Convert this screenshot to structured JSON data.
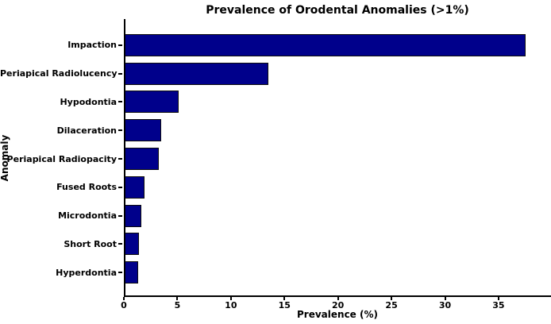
{
  "chart_data": {
    "type": "bar",
    "orientation": "horizontal",
    "title": "Prevalence of Orodental Anomalies (>1%)",
    "xlabel": "Prevalence (%)",
    "ylabel": "Anomaly",
    "categories": [
      "Impaction",
      "Periapical Radiolucency",
      "Hypodontia",
      "Dilaceration",
      "Periapical Radiopacity",
      "Fused Roots",
      "Microdontia",
      "Short Root",
      "Hyperdontia"
    ],
    "values": [
      37.5,
      13.5,
      5.1,
      3.5,
      3.3,
      1.9,
      1.6,
      1.4,
      1.3
    ],
    "xlim": [
      0,
      39.9
    ],
    "xticks": [
      0,
      5,
      10,
      15,
      20,
      25,
      30,
      35
    ],
    "bar_color": "#00008B",
    "bar_edge_color": "#0d0d0d",
    "background": "#FFFFFF",
    "grid": false,
    "legend": null
  }
}
